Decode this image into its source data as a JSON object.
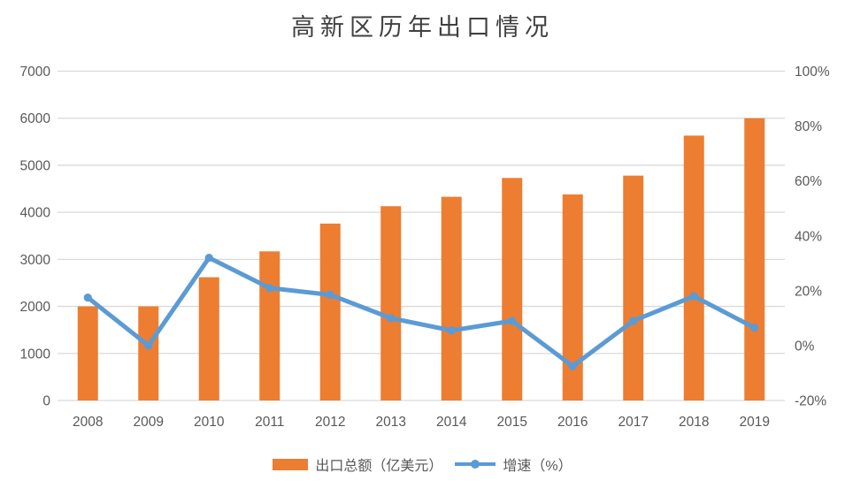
{
  "page": {
    "background": "#FFFFFF"
  },
  "chart_data": {
    "type": "bar",
    "subtype": "combo-bar-line-dual-axis",
    "title": "高新区历年出口情况",
    "categories": [
      "2008",
      "2009",
      "2010",
      "2011",
      "2012",
      "2013",
      "2014",
      "2015",
      "2016",
      "2017",
      "2018",
      "2019"
    ],
    "series": [
      {
        "name": "出口总额（亿美元）",
        "type": "bar",
        "axis": "left",
        "color": "#ED7D31",
        "values": [
          2000,
          2000,
          2620,
          3170,
          3760,
          4130,
          4330,
          4730,
          4380,
          4780,
          5630,
          6000
        ]
      },
      {
        "name": "增速（%）",
        "type": "line",
        "axis": "right",
        "color": "#5B9BD5",
        "marker": "circle",
        "values": [
          17.5,
          0,
          32,
          21,
          18.5,
          10,
          5.5,
          9,
          -7.5,
          9,
          18,
          6.5
        ]
      }
    ],
    "left_axis": {
      "min": 0,
      "max": 7000,
      "step": 1000,
      "tick_labels": [
        "0",
        "1000",
        "2000",
        "3000",
        "4000",
        "5000",
        "6000",
        "7000"
      ]
    },
    "right_axis": {
      "min": -20,
      "max": 100,
      "step": 20,
      "tick_labels": [
        "-20%",
        "0%",
        "20%",
        "40%",
        "60%",
        "80%",
        "100%"
      ]
    },
    "grid": true,
    "legend_position": "bottom",
    "colors": {
      "grid": "#D9D9D9",
      "axis_text": "#595959",
      "title_text": "#404040"
    }
  }
}
